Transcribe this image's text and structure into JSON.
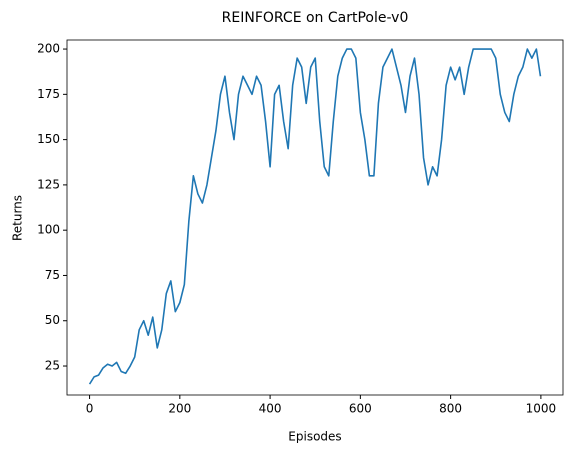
{
  "chart_data": {
    "type": "line",
    "title": "REINFORCE on CartPole-v0",
    "xlabel": "Episodes",
    "ylabel": "Returns",
    "x": [
      0,
      10,
      20,
      30,
      40,
      50,
      60,
      70,
      80,
      90,
      100,
      110,
      120,
      130,
      140,
      150,
      160,
      170,
      180,
      190,
      200,
      210,
      220,
      230,
      240,
      250,
      260,
      270,
      280,
      290,
      300,
      310,
      320,
      330,
      340,
      350,
      360,
      370,
      380,
      390,
      400,
      410,
      420,
      430,
      440,
      450,
      460,
      470,
      480,
      490,
      500,
      510,
      520,
      530,
      540,
      550,
      560,
      570,
      580,
      590,
      600,
      610,
      620,
      630,
      640,
      650,
      660,
      670,
      680,
      690,
      700,
      710,
      720,
      730,
      740,
      750,
      760,
      770,
      780,
      790,
      800,
      810,
      820,
      830,
      840,
      850,
      860,
      870,
      880,
      890,
      900,
      910,
      920,
      930,
      940,
      950,
      960,
      970,
      980,
      990,
      999
    ],
    "series": [
      {
        "name": "Returns",
        "color": "#1f77b4",
        "values": [
          15,
          19,
          20,
          24,
          26,
          25,
          27,
          22,
          21,
          25,
          30,
          45,
          50,
          42,
          52,
          35,
          45,
          65,
          72,
          55,
          60,
          70,
          105,
          130,
          120,
          115,
          125,
          140,
          155,
          175,
          185,
          165,
          150,
          175,
          185,
          180,
          175,
          185,
          180,
          160,
          135,
          175,
          180,
          160,
          145,
          180,
          195,
          190,
          170,
          190,
          195,
          160,
          135,
          130,
          160,
          185,
          195,
          200,
          200,
          195,
          165,
          150,
          130,
          130,
          170,
          190,
          195,
          200,
          190,
          180,
          165,
          185,
          195,
          175,
          140,
          125,
          135,
          130,
          150,
          180,
          190,
          183,
          190,
          175,
          190,
          200,
          200,
          200,
          200,
          200,
          195,
          175,
          165,
          160,
          175,
          185,
          190,
          200,
          195,
          200,
          185
        ]
      }
    ],
    "xlim": [
      -50,
      1049
    ],
    "ylim": [
      9,
      205
    ],
    "xticks": [
      0,
      200,
      400,
      600,
      800,
      1000
    ],
    "yticks": [
      25,
      50,
      75,
      100,
      125,
      150,
      175,
      200
    ]
  }
}
